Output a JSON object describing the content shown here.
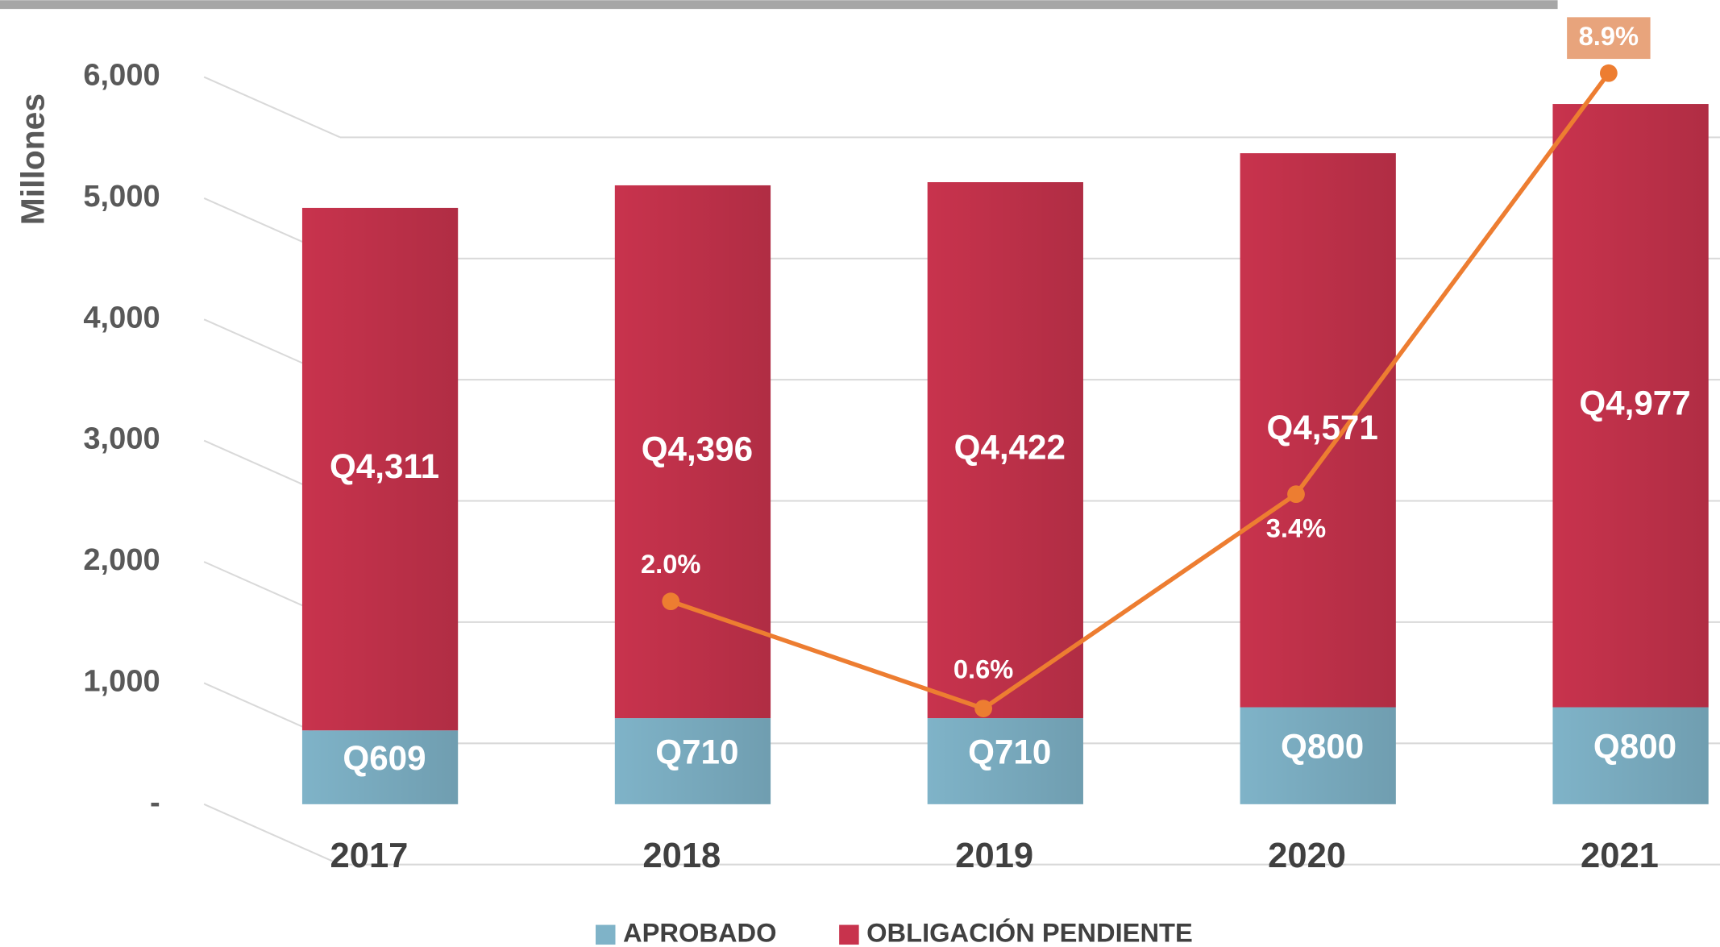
{
  "chart_data": {
    "type": "bar",
    "stacked": true,
    "y_axis_label": "Millones",
    "categories": [
      "2017",
      "2018",
      "2019",
      "2020",
      "2021"
    ],
    "series": [
      {
        "name": "APROBADO",
        "color": "#7fb3c8",
        "values": [
          609,
          710,
          710,
          800,
          800
        ],
        "value_labels": [
          "Q609",
          "Q710",
          "Q710",
          "Q800",
          "Q800"
        ]
      },
      {
        "name": "OBLIGACIÓN PENDIENTE",
        "color": "#c8334d",
        "values": [
          4311,
          4396,
          4422,
          4571,
          4977
        ],
        "value_labels": [
          "Q4,311",
          "Q4,396",
          "Q4,422",
          "Q4,571",
          "Q4,977"
        ]
      }
    ],
    "line_series": {
      "type": "line",
      "axis": "y2",
      "color": "#ed7d31",
      "values": [
        null,
        2.0,
        0.6,
        3.4,
        8.9
      ],
      "value_labels": [
        null,
        "2.0%",
        "0.6%",
        "3.4%",
        "8.9%"
      ]
    },
    "ylim": [
      0,
      6000
    ],
    "yticks": [
      {
        "value": 0,
        "label": "-"
      },
      {
        "value": 1000,
        "label": "1,000"
      },
      {
        "value": 2000,
        "label": "2,000"
      },
      {
        "value": 3000,
        "label": "3,000"
      },
      {
        "value": 4000,
        "label": "4,000"
      },
      {
        "value": 5000,
        "label": "5,000"
      },
      {
        "value": 6000,
        "label": "6,000"
      }
    ],
    "y2lim": [
      -0.65,
      8.85
    ],
    "grid": true,
    "legend": "bottom"
  }
}
